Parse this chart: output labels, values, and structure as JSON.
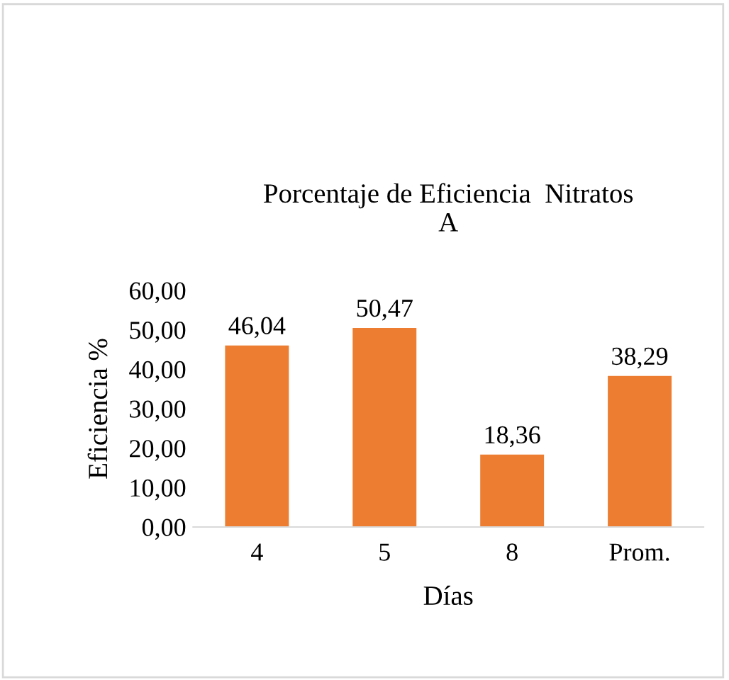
{
  "chart_data": {
    "type": "bar",
    "title": "Porcentaje de Eficiencia  Nitratos\nA",
    "xlabel": "Días",
    "ylabel": "Eficiencia %",
    "categories": [
      "4",
      "5",
      "8",
      "Prom."
    ],
    "values": [
      46.04,
      50.47,
      18.36,
      38.29
    ],
    "value_labels": [
      "46,04",
      "50,47",
      "18,36",
      "38,29"
    ],
    "color": "#ed7d31",
    "grid": false,
    "legend": false,
    "ylim": [
      0,
      60
    ],
    "yticks": [
      {
        "value": 0,
        "label": "0,00"
      },
      {
        "value": 10,
        "label": "10,00"
      },
      {
        "value": 20,
        "label": "20,00"
      },
      {
        "value": 30,
        "label": "30,00"
      },
      {
        "value": 40,
        "label": "40,00"
      },
      {
        "value": 50,
        "label": "50,00"
      },
      {
        "value": 60,
        "label": "60,00"
      }
    ]
  }
}
